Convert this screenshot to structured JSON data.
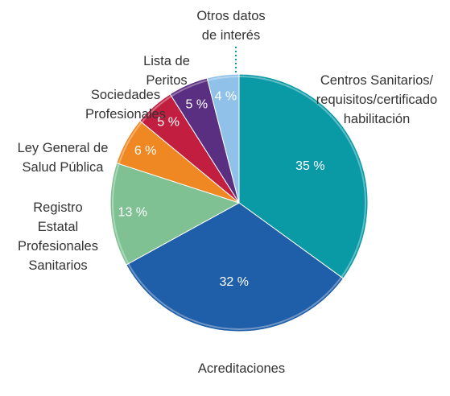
{
  "chart_data": {
    "type": "pie",
    "categories": [
      "Centros Sanitarios/\nrequisitos/certificado\nhabilitación",
      "Acreditaciones",
      "Registro\nEstatal\nProfesionales\nSanitarios",
      "Ley General de\nSalud Pública",
      "Sociedades\nProfesionales",
      "Lista de\nPeritos",
      "Otros datos\nde interés"
    ],
    "values": [
      35,
      32,
      13,
      6,
      5,
      5,
      4
    ],
    "value_labels": [
      "35 %",
      "32 %",
      "13 %",
      "6 %",
      "5 %",
      "5 %",
      "4 %"
    ],
    "colors": [
      "#0a9aa6",
      "#1f5ea8",
      "#80c194",
      "#ef8822",
      "#c21f40",
      "#5a2e81",
      "#8fc1e9"
    ]
  }
}
